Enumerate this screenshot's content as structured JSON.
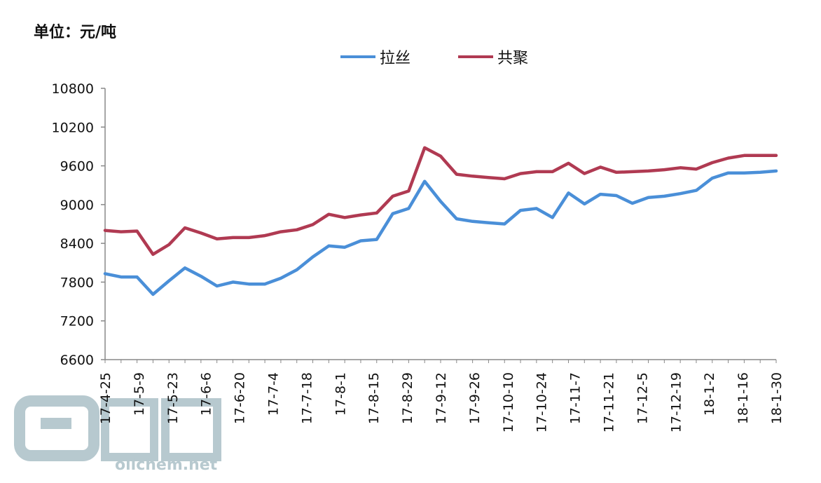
{
  "unit_label": "单位：元/吨",
  "watermark": "oilchem.net",
  "colors": {
    "series1": "#4a8fd8",
    "series2": "#b03a52",
    "axis": "#888888",
    "watermark": "#b7c9cf"
  },
  "chart_data": {
    "type": "line",
    "title": "",
    "xlabel": "",
    "ylabel": "",
    "ylim": [
      6600,
      10800
    ],
    "yticks": [
      6600,
      7200,
      7800,
      8400,
      9000,
      9600,
      10200,
      10800
    ],
    "grid": false,
    "legend_position": "top-center",
    "x_tick_labels": [
      "17-4-25",
      "17-5-9",
      "17-5-23",
      "17-6-6",
      "17-6-20",
      "17-7-4",
      "17-7-18",
      "17-8-1",
      "17-8-15",
      "17-8-29",
      "17-9-12",
      "17-9-26",
      "17-10-10",
      "17-10-24",
      "17-11-7",
      "17-11-21",
      "17-12-5",
      "17-12-19",
      "18-1-2",
      "18-1-16",
      "18-1-30"
    ],
    "series": [
      {
        "name": "拉丝",
        "color": "#4a8fd8",
        "values": [
          7930,
          7880,
          7880,
          7610,
          7820,
          8020,
          7890,
          7740,
          7800,
          7770,
          7770,
          7860,
          7990,
          8190,
          8360,
          8340,
          8440,
          8460,
          8860,
          8940,
          9360,
          9050,
          8780,
          8740,
          8720,
          8700,
          8910,
          8940,
          8800,
          9180,
          9010,
          9160,
          9140,
          9020,
          9110,
          9130,
          9170,
          9220,
          9410,
          9490,
          9490,
          9500,
          9520
        ]
      },
      {
        "name": "共聚",
        "color": "#b03a52",
        "values": [
          8600,
          8580,
          8590,
          8230,
          8380,
          8640,
          8560,
          8470,
          8490,
          8490,
          8520,
          8580,
          8610,
          8690,
          8850,
          8800,
          8840,
          8870,
          9130,
          9210,
          9880,
          9750,
          9470,
          9440,
          9420,
          9400,
          9480,
          9510,
          9510,
          9640,
          9480,
          9580,
          9500,
          9510,
          9520,
          9540,
          9570,
          9550,
          9650,
          9720,
          9760,
          9760,
          9760
        ]
      }
    ]
  }
}
